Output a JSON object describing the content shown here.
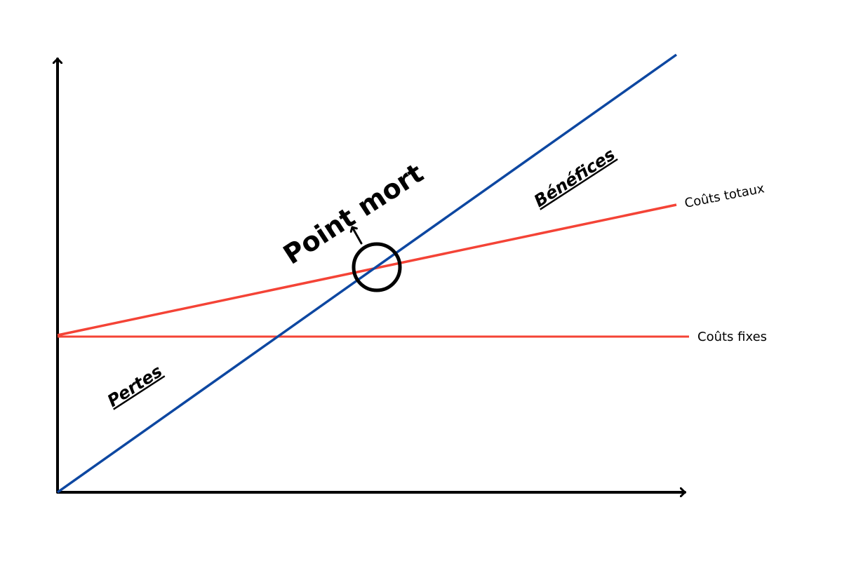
{
  "labels": {
    "point_mort": "Point mort",
    "benefices": "Bénéfices",
    "pertes": "Pertes",
    "couts_totaux": "Coûts totaux",
    "couts_fixes": "Coûts fixes"
  },
  "colors": {
    "revenue_line": "#0d47a1",
    "total_cost_line": "#f44336",
    "fixed_cost_line": "#f44336",
    "axes": "#000000"
  }
}
